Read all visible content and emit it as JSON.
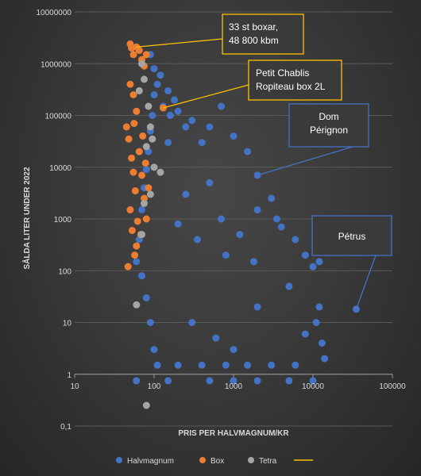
{
  "chart_data": {
    "type": "scatter",
    "title": "",
    "xlabel": "PRIS PER HALVMAGNUM/KR",
    "ylabel": "SÅLDA LITER UNDER 2022",
    "x_scale": "log",
    "y_scale": "log",
    "xlim": [
      10,
      100000
    ],
    "ylim": [
      0.1,
      10000000
    ],
    "x_tick_labels": [
      "10",
      "100",
      "1000",
      "10000",
      "100000"
    ],
    "y_tick_labels": [
      "0,1",
      "1",
      "10",
      "100",
      "1000",
      "10000",
      "100000",
      "1000000",
      "10000000"
    ],
    "grid": "horizontal",
    "legend_position": "bottom",
    "colors": {
      "Halvmagnum": "#4472c4",
      "Box": "#ed7d31",
      "Tetra": "#a5a5a5",
      "callout_border_gold": "#ffc000",
      "callout_border_blue": "#4472c4",
      "callout_fill": "#3a3a3a"
    },
    "series": [
      {
        "name": "Halvmagnum",
        "points": [
          [
            2000,
            7000
          ],
          [
            35000,
            18
          ],
          [
            130,
            150000
          ],
          [
            100,
            800000
          ],
          [
            90,
            1500000
          ],
          [
            110,
            400000
          ],
          [
            150,
            300000
          ],
          [
            200,
            120000
          ],
          [
            300,
            80000
          ],
          [
            500,
            60000
          ],
          [
            700,
            150000
          ],
          [
            1000,
            40000
          ],
          [
            1500,
            20000
          ],
          [
            3000,
            2500
          ],
          [
            4000,
            700
          ],
          [
            3500,
            1000
          ],
          [
            6000,
            400
          ],
          [
            8000,
            200
          ],
          [
            10000,
            120
          ],
          [
            12000,
            150
          ],
          [
            12000,
            20
          ],
          [
            14000,
            2
          ],
          [
            11000,
            10
          ],
          [
            13000,
            4
          ],
          [
            8000,
            6
          ],
          [
            400,
            30000
          ],
          [
            250,
            60000
          ],
          [
            180,
            200000
          ],
          [
            160,
            100000
          ],
          [
            120,
            600000
          ],
          [
            100,
            250000
          ],
          [
            95,
            100000
          ],
          [
            90,
            50000
          ],
          [
            85,
            20000
          ],
          [
            80,
            9000
          ],
          [
            75,
            4000
          ],
          [
            70,
            1500
          ],
          [
            65,
            400
          ],
          [
            60,
            150
          ],
          [
            70,
            80
          ],
          [
            80,
            30
          ],
          [
            90,
            10
          ],
          [
            100,
            3
          ],
          [
            110,
            1.5
          ],
          [
            200,
            1.5
          ],
          [
            400,
            1.5
          ],
          [
            800,
            1.5
          ],
          [
            1500,
            1.5
          ],
          [
            3000,
            1.5
          ],
          [
            6000,
            1.5
          ],
          [
            150,
            0.75
          ],
          [
            500,
            0.75
          ],
          [
            1000,
            0.75
          ],
          [
            2000,
            0.75
          ],
          [
            5000,
            0.75
          ],
          [
            10000,
            0.75
          ],
          [
            60,
            0.75
          ],
          [
            300,
            10
          ],
          [
            600,
            5
          ],
          [
            1000,
            3
          ],
          [
            2000,
            20
          ],
          [
            5000,
            50
          ],
          [
            800,
            200
          ],
          [
            1200,
            500
          ],
          [
            2000,
            1500
          ],
          [
            250,
            3000
          ],
          [
            500,
            5000
          ],
          [
            150,
            30000
          ],
          [
            1800,
            150
          ],
          [
            700,
            1000
          ],
          [
            350,
            400
          ],
          [
            200,
            800
          ]
        ]
      },
      {
        "name": "Box",
        "points": [
          [
            50,
            2400000
          ],
          [
            52,
            2000000
          ],
          [
            55,
            1500000
          ],
          [
            60,
            2100000
          ],
          [
            65,
            1800000
          ],
          [
            70,
            1200000
          ],
          [
            75,
            900000
          ],
          [
            80,
            1500000
          ],
          [
            130,
            140000
          ],
          [
            50,
            400000
          ],
          [
            55,
            250000
          ],
          [
            60,
            120000
          ],
          [
            45,
            60000
          ],
          [
            48,
            35000
          ],
          [
            52,
            15000
          ],
          [
            55,
            8000
          ],
          [
            58,
            3500
          ],
          [
            50,
            1500
          ],
          [
            53,
            600
          ],
          [
            60,
            300
          ],
          [
            47,
            120
          ],
          [
            65,
            20000
          ],
          [
            70,
            7000
          ],
          [
            75,
            2500
          ],
          [
            62,
            900
          ],
          [
            57,
            200
          ],
          [
            80,
            1000
          ],
          [
            68,
            500
          ],
          [
            72,
            40000
          ],
          [
            78,
            12000
          ],
          [
            85,
            4000
          ],
          [
            56,
            70000
          ]
        ]
      },
      {
        "name": "Tetra",
        "points": [
          [
            80,
            0.25
          ],
          [
            60,
            22
          ],
          [
            70,
            1000000
          ],
          [
            75,
            500000
          ],
          [
            65,
            300000
          ],
          [
            85,
            150000
          ],
          [
            90,
            60000
          ],
          [
            80,
            25000
          ],
          [
            100,
            10000
          ],
          [
            90,
            3000
          ],
          [
            70,
            500
          ],
          [
            120,
            8000
          ],
          [
            95,
            35000
          ],
          [
            75,
            2000
          ]
        ]
      }
    ],
    "annotations": [
      {
        "text": "33 st boxar,\n48 800 kbm",
        "border": "gold",
        "target": [
          60,
          2100000
        ]
      },
      {
        "text": "Petit Chablis\nRopiteau box 2L",
        "border": "gold",
        "target": [
          130,
          140000
        ]
      },
      {
        "text": "Dom\nPérignon",
        "border": "blue",
        "target": [
          2000,
          7000
        ]
      },
      {
        "text": "Pétrus",
        "border": "blue",
        "target": [
          35000,
          18
        ]
      }
    ],
    "legend": [
      {
        "label": "Halvmagnum",
        "marker": "dot",
        "color": "#4472c4"
      },
      {
        "label": "Box",
        "marker": "dot",
        "color": "#ed7d31"
      },
      {
        "label": "Tetra",
        "marker": "dot",
        "color": "#a5a5a5"
      },
      {
        "label": "",
        "marker": "line",
        "color": "#ffc000"
      }
    ]
  }
}
